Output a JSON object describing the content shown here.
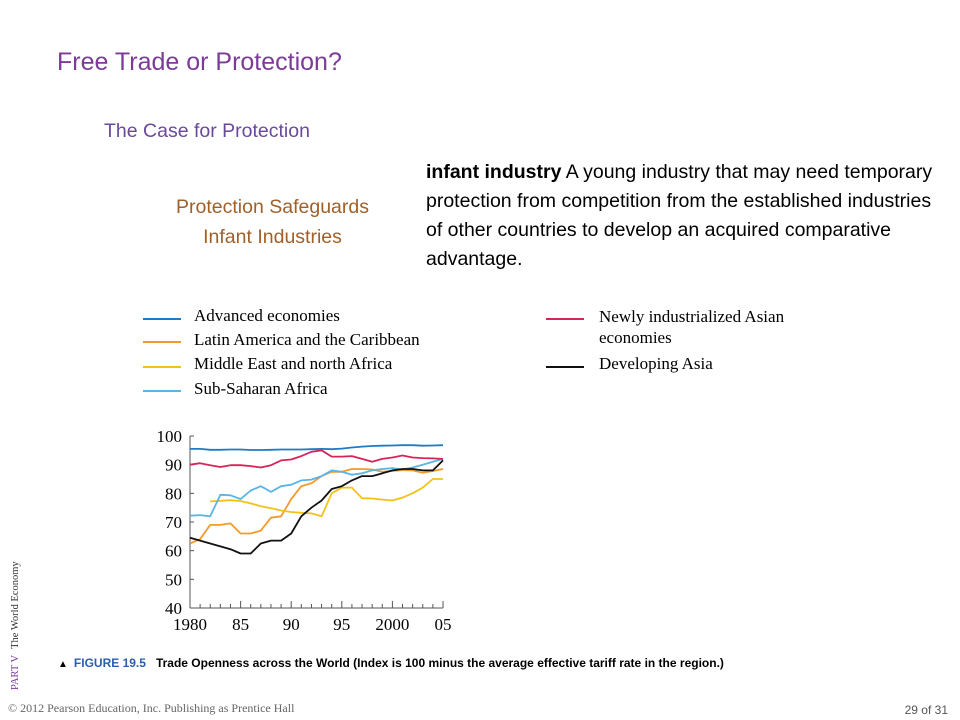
{
  "slide": {
    "title": "Free Trade or Protection?",
    "subtitle": "The Case for Protection",
    "side_heading_line1": "Protection Safeguards",
    "side_heading_line2": "Infant Industries",
    "definition_term": "infant industry",
    "definition_text": "A young industry that may need temporary protection from competition from the established industries of other countries to develop an acquired comparative advantage."
  },
  "figure": {
    "label": "FIGURE 19.5",
    "caption": "Trade Openness across the World (Index is 100 minus the average effective tariff rate in the region.)"
  },
  "footer": {
    "copyright": "© 2012 Pearson Education, Inc. Publishing as Prentice Hall",
    "page": "29 of 31",
    "part_label": "PART V",
    "part_name": "The World Economy"
  },
  "chart_data": {
    "type": "line",
    "title": "",
    "xlabel": "",
    "ylabel": "",
    "ylim": [
      40,
      100
    ],
    "xlim": [
      1980,
      2005
    ],
    "x_tick_labels": [
      "1980",
      "85",
      "90",
      "95",
      "2000",
      "05"
    ],
    "x_tick_values": [
      1980,
      1985,
      1990,
      1995,
      2000,
      2005
    ],
    "y_ticks": [
      40,
      50,
      60,
      70,
      80,
      90,
      100
    ],
    "legend_position": "top",
    "grid": false,
    "series": [
      {
        "name": "Advanced economies",
        "color": "#1f7bc4",
        "x": [
          1980,
          1981,
          1982,
          1983,
          1984,
          1985,
          1986,
          1987,
          1988,
          1989,
          1990,
          1991,
          1992,
          1993,
          1994,
          1995,
          1996,
          1997,
          1998,
          1999,
          2000,
          2001,
          2002,
          2003,
          2004,
          2005
        ],
        "y": [
          95.5,
          95.5,
          95.2,
          95.2,
          95.3,
          95.3,
          95.1,
          95.1,
          95.2,
          95.3,
          95.3,
          95.3,
          95.4,
          95.5,
          95.4,
          95.6,
          96,
          96.3,
          96.5,
          96.6,
          96.7,
          96.8,
          96.8,
          96.6,
          96.7,
          96.8
        ]
      },
      {
        "name": "Latin America and the Caribbean",
        "color": "#f39a2b",
        "x": [
          1980,
          1981,
          1982,
          1983,
          1984,
          1985,
          1986,
          1987,
          1988,
          1989,
          1990,
          1991,
          1992,
          1993,
          1994,
          1995,
          1996,
          1997,
          1998,
          1999,
          2000,
          2001,
          2002,
          2003,
          2004,
          2005
        ],
        "y": [
          62.5,
          64,
          69,
          69,
          69.5,
          66,
          66,
          67,
          71.5,
          72,
          78,
          82.5,
          83.5,
          86,
          87.5,
          87.5,
          88.5,
          88.5,
          88.3,
          87.5,
          87.8,
          88.1,
          88,
          87.2,
          87.8,
          88.5
        ]
      },
      {
        "name": "Middle East and north Africa",
        "color": "#f2c218",
        "x": [
          1982,
          1983,
          1984,
          1985,
          1986,
          1987,
          1988,
          1989,
          1990,
          1991,
          1992,
          1993,
          1994,
          1995,
          1996,
          1997,
          1998,
          1999,
          2000,
          2001,
          2002,
          2003,
          2004,
          2005
        ],
        "y": [
          77.2,
          77.4,
          77.6,
          77.3,
          76.5,
          75.5,
          74.8,
          74,
          73.5,
          73.2,
          73,
          72,
          80,
          82,
          82,
          78.3,
          78.2,
          77.8,
          77.5,
          78.5,
          80,
          82,
          85,
          85
        ]
      },
      {
        "name": "Sub-Saharan Africa",
        "color": "#5ab4e5",
        "x": [
          1980,
          1981,
          1982,
          1983,
          1984,
          1985,
          1986,
          1987,
          1988,
          1989,
          1990,
          1991,
          1992,
          1993,
          1994,
          1995,
          1996,
          1997,
          1998,
          1999,
          2000,
          2001,
          2002,
          2003,
          2004,
          2005
        ],
        "y": [
          72.2,
          72.4,
          72,
          79.5,
          79.3,
          78,
          81,
          82.5,
          80.5,
          82.5,
          83,
          84.5,
          84.8,
          86,
          88,
          87.5,
          86.5,
          87,
          88,
          88.5,
          88.8,
          88.3,
          89,
          90,
          91,
          92
        ]
      },
      {
        "name": "Newly industrialized Asian economies",
        "color": "#d9245a",
        "x": [
          1980,
          1981,
          1982,
          1983,
          1984,
          1985,
          1986,
          1987,
          1988,
          1989,
          1990,
          1991,
          1992,
          1993,
          1994,
          1995,
          1996,
          1997,
          1998,
          1999,
          2000,
          2001,
          2002,
          2003,
          2004,
          2005
        ],
        "y": [
          90,
          90.5,
          89.8,
          89.2,
          89.8,
          89.8,
          89.5,
          89,
          89.8,
          91.5,
          91.8,
          93,
          94.5,
          95,
          92.8,
          92.8,
          93,
          92,
          91,
          92,
          92.5,
          93.2,
          92.5,
          92.3,
          92.2,
          92
        ]
      },
      {
        "name": "Developing Asia",
        "color": "#111111",
        "x": [
          1980,
          1981,
          1982,
          1983,
          1984,
          1985,
          1986,
          1987,
          1988,
          1989,
          1990,
          1991,
          1992,
          1993,
          1994,
          1995,
          1996,
          1997,
          1998,
          1999,
          2000,
          2001,
          2002,
          2003,
          2004,
          2005
        ],
        "y": [
          64.5,
          63.5,
          62.5,
          61.5,
          60.5,
          59,
          59,
          62.5,
          63.5,
          63.5,
          66,
          72,
          75,
          77.5,
          81.5,
          82.5,
          84.5,
          86,
          86,
          87,
          88,
          88.5,
          88.5,
          88,
          88,
          91.5
        ]
      }
    ]
  }
}
